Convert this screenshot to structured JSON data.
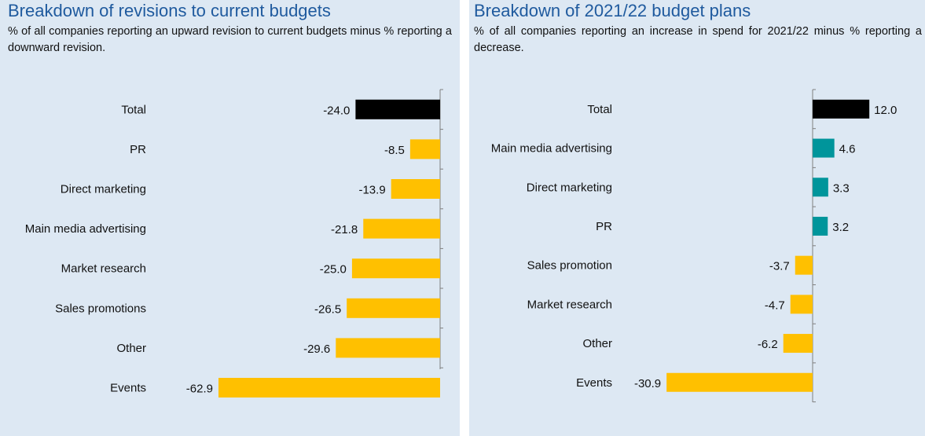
{
  "colors": {
    "background": "#dde8f3",
    "title": "#1f5a9e",
    "total": "#000000",
    "negative": "#ffc000",
    "positive": "#00959b",
    "axis": "#7f7f7f"
  },
  "chart_data": [
    {
      "type": "bar",
      "orientation": "horizontal",
      "title": "Breakdown of revisions to current budgets",
      "subtitle": "% of all companies reporting an upward revision to current budgets minus % reporting a downward revision.",
      "categories": [
        "Total",
        "PR",
        "Direct marketing",
        "Main media advertising",
        "Market research",
        "Sales promotions",
        "Other",
        "Events"
      ],
      "values": [
        -24.0,
        -8.5,
        -13.9,
        -21.8,
        -25.0,
        -26.5,
        -29.6,
        -62.9
      ],
      "data_labels": [
        "-24.0",
        "-8.5",
        "-13.9",
        "-21.8",
        "-25.0",
        "-26.5",
        "-29.6",
        "-62.9"
      ],
      "xlim": [
        -62.9,
        0
      ],
      "grid": false,
      "legend": "none"
    },
    {
      "type": "bar",
      "orientation": "horizontal",
      "title": "Breakdown of 2021/22 budget plans",
      "subtitle": "% of all companies reporting an increase in spend for 2021/22 minus % reporting a decrease.",
      "categories": [
        "Total",
        "Main media advertising",
        "Direct marketing",
        "PR",
        "Sales promotion",
        "Market research",
        "Other",
        "Events"
      ],
      "values": [
        12.0,
        4.6,
        3.3,
        3.2,
        -3.7,
        -4.7,
        -6.2,
        -30.9
      ],
      "data_labels": [
        "12.0",
        "4.6",
        "3.3",
        "3.2",
        "-3.7",
        "-4.7",
        "-6.2",
        "-30.9"
      ],
      "xlim": [
        -30.9,
        12.0
      ],
      "grid": false,
      "legend": "none"
    }
  ]
}
